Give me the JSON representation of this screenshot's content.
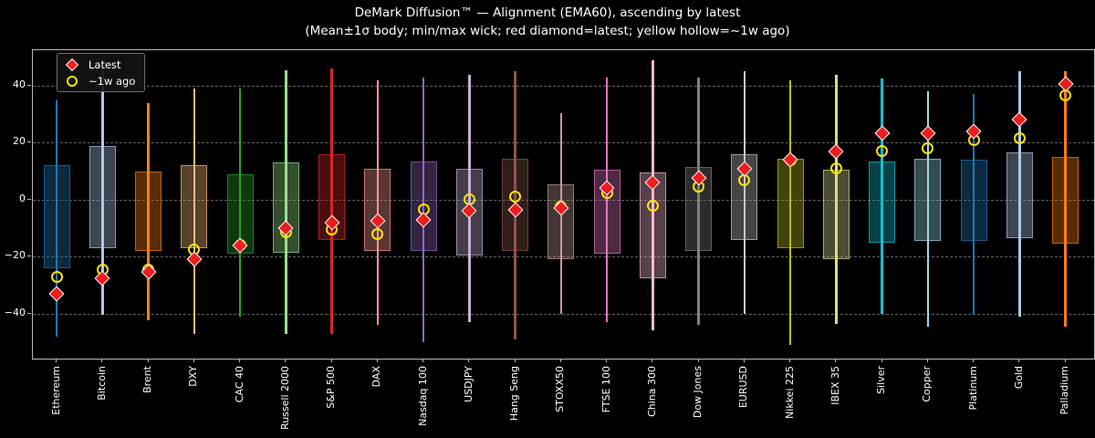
{
  "title": "DeMark Diffusion™ — Alignment (EMA60), ascending by latest",
  "subtitle": "(Mean±1σ body; min/max wick; red diamond=latest; yellow hollow=~1w ago)",
  "legend": {
    "latest_label": "Latest",
    "week_ago_label": "~1w ago",
    "latest_color": "#ee1c1c",
    "latest_edge_color": "#ffffff",
    "week_ago_color": "#ffe400"
  },
  "axes": {
    "yticks": [
      40,
      20,
      0,
      -20,
      -40
    ],
    "ylim": [
      -55.8,
      52.5
    ],
    "grid": true,
    "grid_style": "dashed",
    "background": "#000000",
    "spine_color": "#b9b9b9",
    "text_color": "#ffffff"
  },
  "chart_data": {
    "type": "box",
    "title": "DeMark Diffusion™ — Alignment (EMA60), ascending by latest",
    "subtitle": "(Mean±1σ body; min/max wick; red diamond=latest; yellow hollow=~1w ago)",
    "xlabel": "",
    "ylabel": "",
    "ylim": [
      -55.8,
      52.5
    ],
    "legend_position": "upper-left",
    "body_meaning": "mean ± 1 sigma",
    "wick_meaning": "min / max",
    "series": [
      {
        "name": "Ethereum",
        "color": "#1f77b4",
        "body": [
          -24,
          12
        ],
        "wick": [
          -48,
          35
        ],
        "latest": -33,
        "week_ago": -27
      },
      {
        "name": "Bitcoin",
        "color": "#aec7e8",
        "body": [
          -17,
          19
        ],
        "wick": [
          -40.5,
          47
        ],
        "latest": -27.5,
        "week_ago": -24.5
      },
      {
        "name": "Brent",
        "color": "#ff7f0e",
        "body": [
          -18,
          10
        ],
        "wick": [
          -42.5,
          34
        ],
        "latest": -25.5,
        "week_ago": -24.5
      },
      {
        "name": "DXY",
        "color": "#ffbb78",
        "body": [
          -17,
          12
        ],
        "wick": [
          -47,
          39
        ],
        "latest": -21,
        "week_ago": -17.5
      },
      {
        "name": "CAC 40",
        "color": "#2ca02c",
        "body": [
          -19,
          9
        ],
        "wick": [
          -41,
          39
        ],
        "latest": -16,
        "week_ago": -16
      },
      {
        "name": "Russell 2000",
        "color": "#98df8a",
        "body": [
          -18.5,
          13
        ],
        "wick": [
          -47,
          45.5
        ],
        "latest": -10,
        "week_ago": -11.5
      },
      {
        "name": "S&P 500",
        "color": "#d62728",
        "body": [
          -14,
          16
        ],
        "wick": [
          -47,
          46
        ],
        "latest": -8,
        "week_ago": -10.5
      },
      {
        "name": "DAX",
        "color": "#ff9896",
        "body": [
          -18,
          11
        ],
        "wick": [
          -44,
          42
        ],
        "latest": -7.5,
        "week_ago": -12
      },
      {
        "name": "Nasdaq 100",
        "color": "#9467bd",
        "body": [
          -18,
          13.5
        ],
        "wick": [
          -50,
          43
        ],
        "latest": -7,
        "week_ago": -3.5
      },
      {
        "name": "USDJPY",
        "color": "#c5b0d5",
        "body": [
          -19.5,
          11
        ],
        "wick": [
          -43,
          44
        ],
        "latest": -4,
        "week_ago": 0
      },
      {
        "name": "Hang Seng",
        "color": "#8c564b",
        "body": [
          -18,
          14.5
        ],
        "wick": [
          -49,
          45
        ],
        "latest": -3.5,
        "week_ago": 1
      },
      {
        "name": "STOXX50",
        "color": "#c49c94",
        "body": [
          -21,
          5.5
        ],
        "wick": [
          -40,
          30.5
        ],
        "latest": -3,
        "week_ago": -2.5
      },
      {
        "name": "FTSE 100",
        "color": "#e377c2",
        "body": [
          -19,
          10.5
        ],
        "wick": [
          -43,
          43
        ],
        "latest": 4,
        "week_ago": 2.5
      },
      {
        "name": "China 300",
        "color": "#f7b6d2",
        "body": [
          -27.5,
          9.5
        ],
        "wick": [
          -46,
          49
        ],
        "latest": 6,
        "week_ago": -2
      },
      {
        "name": "Dow Jones",
        "color": "#7f7f7f",
        "body": [
          -18,
          11.5
        ],
        "wick": [
          -44,
          43
        ],
        "latest": 7.5,
        "week_ago": 4.5
      },
      {
        "name": "EURUSD",
        "color": "#c7c7c7",
        "body": [
          -14,
          16
        ],
        "wick": [
          -40,
          45
        ],
        "latest": 11,
        "week_ago": 7
      },
      {
        "name": "Nikkei 225",
        "color": "#bcbd22",
        "body": [
          -17,
          14.5
        ],
        "wick": [
          -51,
          42
        ],
        "latest": 14,
        "week_ago": 14
      },
      {
        "name": "IBEX 35",
        "color": "#dbdb8d",
        "body": [
          -21,
          10.5
        ],
        "wick": [
          -43.5,
          44
        ],
        "latest": 17,
        "week_ago": 11
      },
      {
        "name": "Silver",
        "color": "#17becf",
        "body": [
          -15,
          13.5
        ],
        "wick": [
          -40,
          42.5
        ],
        "latest": 23.5,
        "week_ago": 17
      },
      {
        "name": "Copper",
        "color": "#9edae5",
        "body": [
          -14.5,
          14.5
        ],
        "wick": [
          -44.5,
          38
        ],
        "latest": 23.5,
        "week_ago": 18
      },
      {
        "name": "Platinum",
        "color": "#1f77b4",
        "body": [
          -14.5,
          14
        ],
        "wick": [
          -40.5,
          37
        ],
        "latest": 24,
        "week_ago": 21
      },
      {
        "name": "Gold",
        "color": "#aec7e8",
        "body": [
          -13.5,
          16.5
        ],
        "wick": [
          -41,
          45
        ],
        "latest": 28,
        "week_ago": 21.5
      },
      {
        "name": "Palladium",
        "color": "#ff7f0e",
        "body": [
          -15.5,
          15
        ],
        "wick": [
          -44.5,
          45
        ],
        "latest": 40.5,
        "week_ago": 36.5
      }
    ]
  }
}
